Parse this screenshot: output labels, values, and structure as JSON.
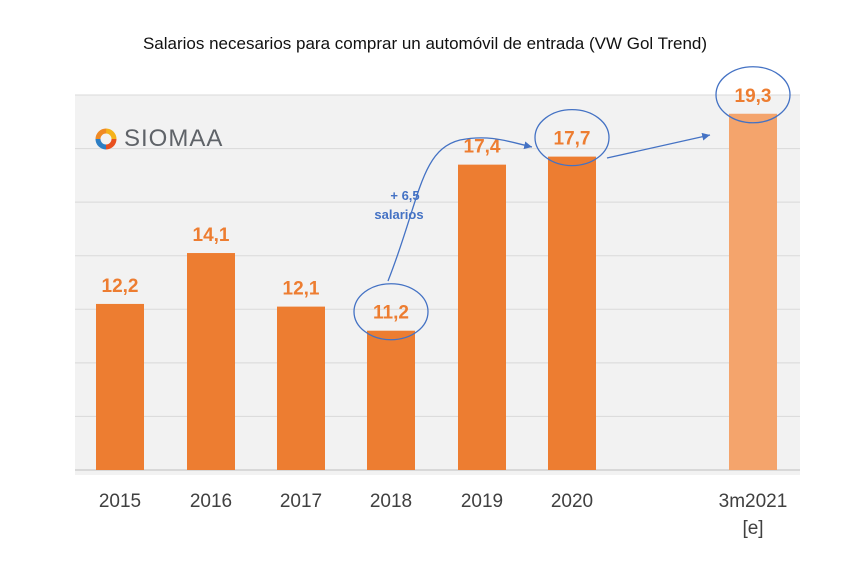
{
  "title": "Salarios necesarios para comprar un automóvil de entrada (VW Gol Trend)",
  "logo": {
    "text": "SIOMAA",
    "icon": "siomaa-logo-icon"
  },
  "annotation": {
    "line1": "+ 6,5",
    "line2": "salarios"
  },
  "colors": {
    "bar": "#ed7d31",
    "bar_estimate": "#f4a46c",
    "label": "#ed7d31",
    "highlight": "#4472c4",
    "annotation_text": "#4472c4"
  },
  "chart_data": {
    "type": "bar",
    "title": "Salarios necesarios para comprar un automóvil de entrada (VW Gol Trend)",
    "categories": [
      "2015",
      "2016",
      "2017",
      "2018",
      "2019",
      "2020",
      "3m2021\n[e]"
    ],
    "values": [
      12.2,
      14.1,
      12.1,
      11.2,
      17.4,
      17.7,
      19.3
    ],
    "value_labels": [
      "12,2",
      "14,1",
      "12,1",
      "11,2",
      "17,4",
      "17,7",
      "19,3"
    ],
    "estimated": [
      false,
      false,
      false,
      false,
      false,
      false,
      true
    ],
    "highlighted": [
      "2018",
      "2020",
      "3m2021\n[e]"
    ],
    "ylim": [
      6,
      20
    ],
    "grid": true,
    "xlabel": "",
    "ylabel": ""
  }
}
